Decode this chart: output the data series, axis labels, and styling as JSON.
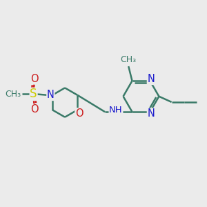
{
  "background_color": "#ebebeb",
  "bond_color": "#3a7a68",
  "bond_width": 1.8,
  "atom_colors": {
    "C": "#3a7a68",
    "N": "#1a1acc",
    "O": "#cc1a1a",
    "S": "#cccc00",
    "H": "#3a7a68"
  },
  "font_size": 9.5,
  "xlim": [
    0,
    10
  ],
  "ylim": [
    0,
    10
  ]
}
